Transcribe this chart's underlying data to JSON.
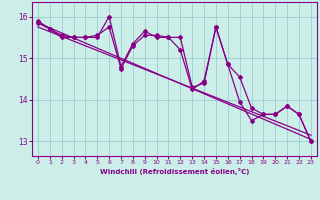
{
  "xlabel": "Windchill (Refroidissement éolien,°C)",
  "bg_color": "#cceee8",
  "line_color": "#880088",
  "grid_color": "#99cccc",
  "xlim": [
    -0.5,
    23.5
  ],
  "ylim": [
    12.65,
    16.35
  ],
  "yticks": [
    13,
    14,
    15,
    16
  ],
  "xticks": [
    0,
    1,
    2,
    3,
    4,
    5,
    6,
    7,
    8,
    9,
    10,
    11,
    12,
    13,
    14,
    15,
    16,
    17,
    18,
    19,
    20,
    21,
    22,
    23
  ],
  "series1": [
    15.9,
    15.7,
    15.55,
    15.5,
    15.5,
    15.55,
    15.75,
    14.75,
    15.3,
    15.55,
    15.55,
    15.5,
    15.5,
    14.3,
    14.4,
    15.75,
    14.85,
    14.55,
    13.8,
    13.65,
    13.65,
    13.85,
    13.65,
    13.0
  ],
  "series2": [
    15.85,
    15.7,
    15.5,
    15.5,
    15.5,
    15.5,
    16.0,
    14.8,
    15.35,
    15.65,
    15.5,
    15.5,
    15.2,
    14.25,
    14.45,
    15.75,
    14.85,
    13.95,
    13.5,
    13.65,
    13.65,
    13.85,
    13.65,
    13.0
  ],
  "trend1_x": [
    0,
    23
  ],
  "trend1_y": [
    15.85,
    13.05
  ],
  "trend2_x": [
    0,
    23
  ],
  "trend2_y": [
    15.75,
    13.15
  ]
}
